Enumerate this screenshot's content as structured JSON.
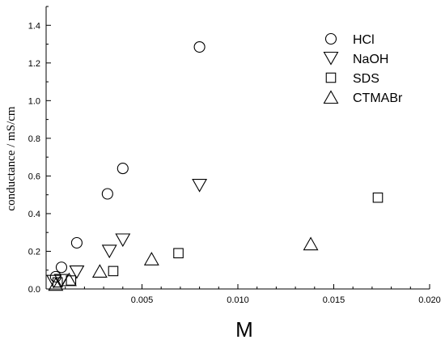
{
  "chart_data": {
    "type": "scatter",
    "title": "",
    "xlabel": "M",
    "ylabel": "conductance / mS/cm",
    "xlim": [
      0,
      0.02
    ],
    "ylim": [
      0,
      1.5
    ],
    "x_ticks": [
      0.005,
      0.01,
      0.015,
      0.02
    ],
    "x_tick_labels": [
      "0.005",
      "0.010",
      "0.015",
      "0.020"
    ],
    "y_ticks": [
      0.0,
      0.2,
      0.4,
      0.6,
      0.8,
      1.0,
      1.2,
      1.4
    ],
    "y_tick_labels": [
      "0.0",
      "0.2",
      "0.4",
      "0.6",
      "0.8",
      "1.0",
      "1.2",
      "1.4"
    ],
    "grid": false,
    "legend_position": "top-right",
    "series": [
      {
        "name": "HCl",
        "marker": "circle",
        "points": [
          [
            0.0005,
            0.065
          ],
          [
            0.0008,
            0.115
          ],
          [
            0.0016,
            0.245
          ],
          [
            0.0032,
            0.505
          ],
          [
            0.004,
            0.64
          ],
          [
            0.008,
            1.285
          ]
        ]
      },
      {
        "name": "NaOH",
        "marker": "triangle-down",
        "points": [
          [
            0.0004,
            0.04
          ],
          [
            0.0008,
            0.045
          ],
          [
            0.0016,
            0.09
          ],
          [
            0.0033,
            0.2
          ],
          [
            0.004,
            0.26
          ],
          [
            0.008,
            0.55
          ]
        ]
      },
      {
        "name": "SDS",
        "marker": "square",
        "points": [
          [
            0.0006,
            0.035
          ],
          [
            0.0013,
            0.045
          ],
          [
            0.0035,
            0.095
          ],
          [
            0.0069,
            0.19
          ],
          [
            0.0173,
            0.485
          ]
        ]
      },
      {
        "name": "CTMABr",
        "marker": "triangle-up",
        "points": [
          [
            0.0005,
            0.025
          ],
          [
            0.0012,
            0.05
          ],
          [
            0.0028,
            0.095
          ],
          [
            0.0055,
            0.16
          ],
          [
            0.0138,
            0.24
          ]
        ]
      }
    ]
  }
}
